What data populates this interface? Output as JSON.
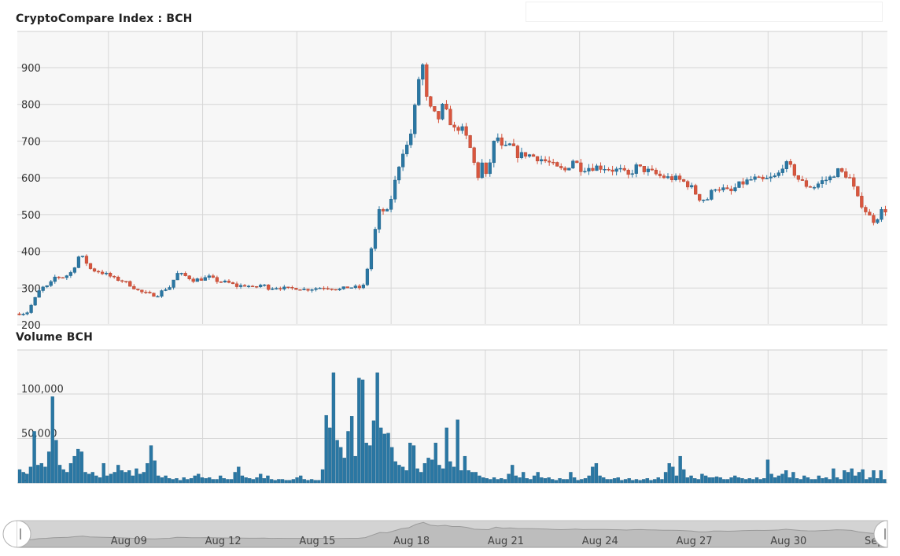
{
  "price_title": "CryptoCompare Index : BCH",
  "volume_title": "Volume BCH",
  "colors": {
    "up": "#2a77a3",
    "down": "#d9563e",
    "volume": "#2a77a3",
    "grid": "#d6d6d6",
    "plot_bg": "#f7f7f7",
    "navigator_bg": "#cfcfcf"
  },
  "x_labels": [
    "Aug 09",
    "Aug 12",
    "Aug 15",
    "Aug 18",
    "Aug 21",
    "Aug 24",
    "Aug 27",
    "Aug 30",
    "Sep"
  ],
  "chart_data": [
    {
      "type": "candlestick",
      "title": "CryptoCompare Index : BCH",
      "y_ticks": [
        200,
        300,
        400,
        500,
        600,
        700,
        800,
        900
      ],
      "ylim": [
        200,
        980
      ],
      "x_range": [
        "Aug 06",
        "Sep 01"
      ],
      "grid": true,
      "close_path": [
        [
          6.0,
          230
        ],
        [
          6.3,
          232
        ],
        [
          6.5,
          262
        ],
        [
          6.75,
          300
        ],
        [
          7.0,
          305
        ],
        [
          7.2,
          330
        ],
        [
          7.5,
          330
        ],
        [
          7.75,
          345
        ],
        [
          7.95,
          385
        ],
        [
          8.1,
          382
        ],
        [
          8.35,
          350
        ],
        [
          8.6,
          345
        ],
        [
          8.9,
          335
        ],
        [
          9.1,
          325
        ],
        [
          9.35,
          320
        ],
        [
          9.6,
          308
        ],
        [
          9.9,
          290
        ],
        [
          10.2,
          283
        ],
        [
          10.45,
          280
        ],
        [
          10.65,
          295
        ],
        [
          10.9,
          305
        ],
        [
          11.05,
          340
        ],
        [
          11.3,
          335
        ],
        [
          11.6,
          322
        ],
        [
          11.9,
          325
        ],
        [
          12.1,
          330
        ],
        [
          12.4,
          318
        ],
        [
          12.7,
          315
        ],
        [
          13.0,
          305
        ],
        [
          13.3,
          308
        ],
        [
          13.5,
          300
        ],
        [
          13.8,
          310
        ],
        [
          14.0,
          300
        ],
        [
          14.3,
          302
        ],
        [
          14.6,
          298
        ],
        [
          14.9,
          300
        ],
        [
          15.15,
          296
        ],
        [
          15.4,
          298
        ],
        [
          15.7,
          302
        ],
        [
          16.0,
          300
        ],
        [
          16.25,
          296
        ],
        [
          16.5,
          302
        ],
        [
          16.8,
          302
        ],
        [
          17.0,
          300
        ],
        [
          17.1,
          335
        ],
        [
          17.25,
          400
        ],
        [
          17.4,
          460
        ],
        [
          17.55,
          520
        ],
        [
          17.75,
          500
        ],
        [
          17.95,
          560
        ],
        [
          18.1,
          620
        ],
        [
          18.3,
          680
        ],
        [
          18.45,
          690
        ],
        [
          18.6,
          750
        ],
        [
          18.75,
          860
        ],
        [
          18.9,
          910
        ],
        [
          19.05,
          800
        ],
        [
          19.2,
          780
        ],
        [
          19.4,
          760
        ],
        [
          19.55,
          795
        ],
        [
          19.7,
          770
        ],
        [
          19.9,
          730
        ],
        [
          20.1,
          740
        ],
        [
          20.35,
          700
        ],
        [
          20.5,
          655
        ],
        [
          20.65,
          600
        ],
        [
          20.8,
          640
        ],
        [
          20.95,
          595
        ],
        [
          21.1,
          670
        ],
        [
          21.25,
          720
        ],
        [
          21.45,
          675
        ],
        [
          21.7,
          690
        ],
        [
          21.95,
          660
        ],
        [
          22.2,
          665
        ],
        [
          22.45,
          658
        ],
        [
          22.7,
          650
        ],
        [
          22.95,
          640
        ],
        [
          23.2,
          625
        ],
        [
          23.45,
          620
        ],
        [
          23.7,
          650
        ],
        [
          23.95,
          625
        ],
        [
          24.2,
          628
        ],
        [
          24.45,
          630
        ],
        [
          24.7,
          628
        ],
        [
          24.95,
          622
        ],
        [
          25.2,
          620
        ],
        [
          25.45,
          605
        ],
        [
          25.7,
          630
        ],
        [
          25.95,
          622
        ],
        [
          26.2,
          615
        ],
        [
          26.45,
          605
        ],
        [
          26.7,
          600
        ],
        [
          26.95,
          598
        ],
        [
          27.2,
          590
        ],
        [
          27.45,
          575
        ],
        [
          27.7,
          545
        ],
        [
          27.95,
          540
        ],
        [
          28.2,
          575
        ],
        [
          28.45,
          570
        ],
        [
          28.7,
          560
        ],
        [
          28.95,
          580
        ],
        [
          29.2,
          590
        ],
        [
          29.45,
          598
        ],
        [
          29.7,
          592
        ],
        [
          29.95,
          598
        ],
        [
          30.2,
          605
        ],
        [
          30.4,
          640
        ],
        [
          30.6,
          630
        ],
        [
          30.85,
          598
        ],
        [
          31.1,
          580
        ],
        [
          31.35,
          575
        ],
        [
          31.6,
          590
        ],
        [
          31.85,
          598
        ],
        [
          32.1,
          620
        ],
        [
          32.35,
          610
        ],
        [
          32.55,
          595
        ],
        [
          32.7,
          550
        ],
        [
          32.9,
          525
        ],
        [
          33.1,
          498
        ],
        [
          33.3,
          480
        ],
        [
          33.5,
          510
        ],
        [
          33.65,
          512
        ]
      ],
      "volume": {
        "title": "Volume BCH",
        "y_ticks": [
          0,
          50000,
          100000
        ],
        "ylim": [
          0,
          145000
        ],
        "bars": [
          15000,
          12000,
          10000,
          18000,
          58000,
          20000,
          22000,
          18000,
          35000,
          97000,
          48000,
          20000,
          15000,
          12000,
          22000,
          30000,
          38000,
          35000,
          12000,
          10000,
          12000,
          8000,
          6000,
          22000,
          8000,
          10000,
          12000,
          20000,
          14000,
          12000,
          14000,
          8000,
          16000,
          10000,
          12000,
          22000,
          42000,
          25000,
          8000,
          6000,
          8000,
          5000,
          4000,
          5000,
          3000,
          6000,
          4000,
          5000,
          8000,
          10000,
          6000,
          5000,
          6000,
          4000,
          4000,
          8000,
          5000,
          4000,
          4000,
          12000,
          18000,
          8000,
          6000,
          5000,
          4000,
          6000,
          10000,
          5000,
          8000,
          4000,
          3000,
          4000,
          4000,
          3000,
          3000,
          4000,
          6000,
          8000,
          4000,
          3000,
          4000,
          3000,
          3000,
          15000,
          76000,
          62000,
          124000,
          48000,
          40000,
          28000,
          58000,
          75000,
          30000,
          118000,
          116000,
          45000,
          42000,
          70000,
          124000,
          62000,
          55000,
          56000,
          40000,
          24000,
          20000,
          18000,
          14000,
          45000,
          42000,
          16000,
          12000,
          22000,
          28000,
          26000,
          45000,
          20000,
          16000,
          62000,
          24000,
          18000,
          71000,
          14000,
          30000,
          14000,
          12000,
          12000,
          8000,
          6000,
          5000,
          4000,
          6000,
          4000,
          5000,
          4000,
          10000,
          20000,
          8000,
          6000,
          12000,
          5000,
          4000,
          8000,
          12000,
          6000,
          5000,
          6000,
          4000,
          3000,
          5000,
          4000,
          4000,
          12000,
          6000,
          3000,
          4000,
          5000,
          8000,
          18000,
          22000,
          8000,
          6000,
          4000,
          4000,
          5000,
          6000,
          3000,
          4000,
          5000,
          3000,
          4000,
          3000,
          4000,
          5000,
          3000,
          4000,
          6000,
          4000,
          12000,
          22000,
          18000,
          8000,
          30000,
          15000,
          6000,
          8000,
          5000,
          4000,
          10000,
          8000,
          6000,
          6000,
          7000,
          6000,
          4000,
          4000,
          6000,
          8000,
          6000,
          5000,
          4000,
          5000,
          4000,
          6000,
          4000,
          5000,
          26000,
          10000,
          6000,
          8000,
          10000,
          14000,
          6000,
          12000,
          5000,
          4000,
          8000,
          6000,
          4000,
          4000,
          8000,
          5000,
          6000,
          4000,
          16000,
          6000,
          4000,
          14000,
          12000,
          16000,
          8000,
          12000,
          15000,
          4000,
          6000,
          14000,
          5000,
          14000,
          4000
        ]
      }
    }
  ]
}
